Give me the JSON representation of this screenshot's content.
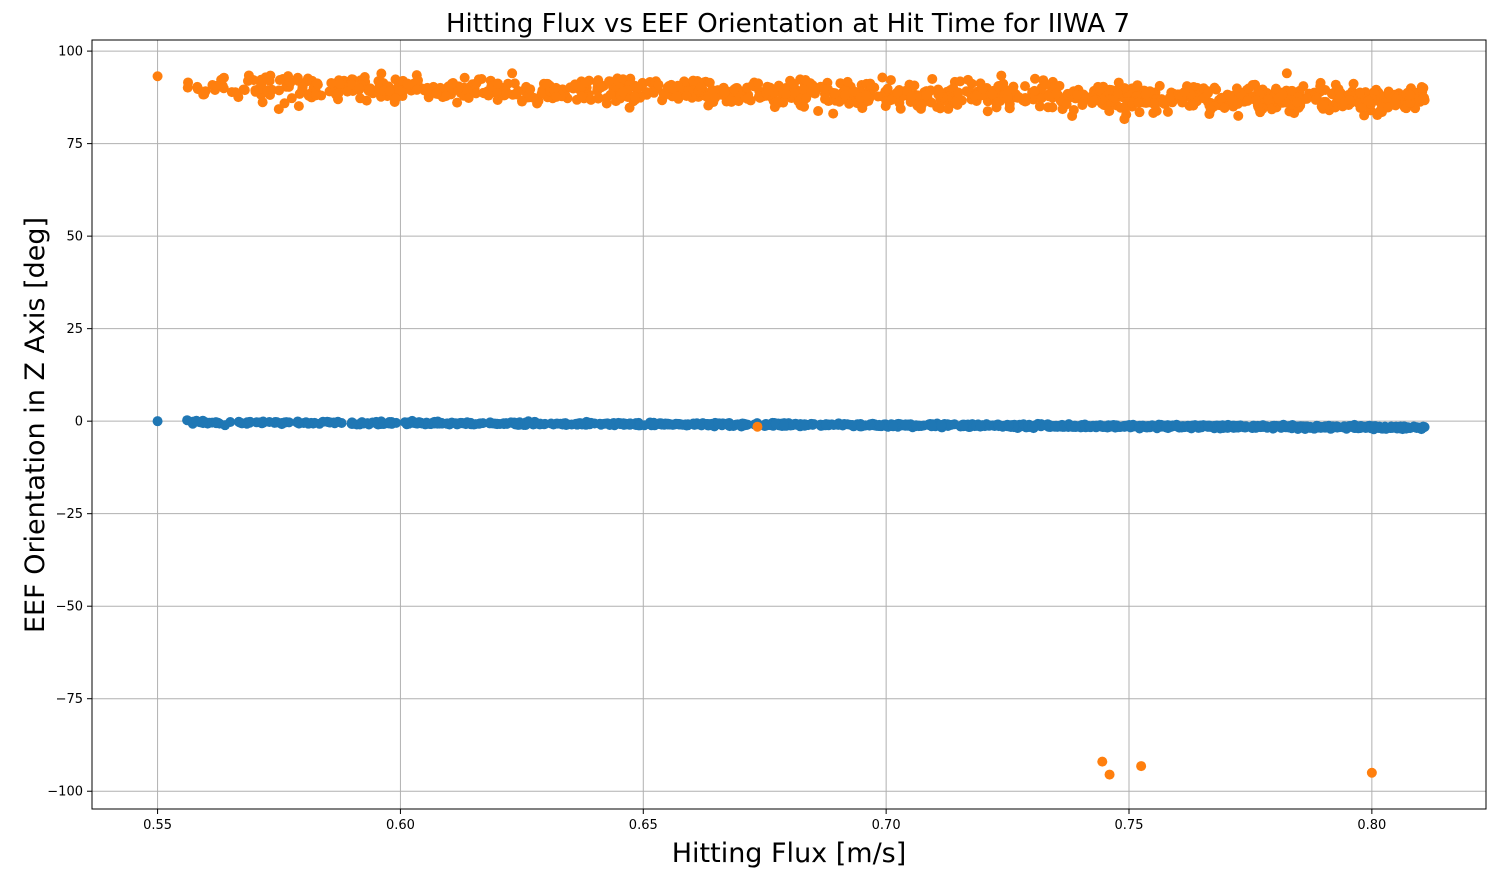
{
  "chart_data": {
    "type": "scatter",
    "title": "Hitting Flux vs EEF Orientation at Hit Time for IIWA 7",
    "xlabel": "Hitting Flux [m/s]",
    "ylabel": "EEF Orientation in Z Axis [deg]",
    "xlim": [
      0.5365,
      0.8235
    ],
    "ylim": [
      -104.8,
      103.0
    ],
    "xticks": [
      0.55,
      0.6,
      0.65,
      0.7,
      0.75,
      0.8
    ],
    "xtick_labels": [
      "0.55",
      "0.60",
      "0.65",
      "0.70",
      "0.75",
      "0.80"
    ],
    "yticks": [
      100,
      75,
      50,
      25,
      0,
      -25,
      -50,
      -75,
      -100
    ],
    "ytick_labels": [
      "100",
      "75",
      "50",
      "25",
      "0",
      "−25",
      "−50",
      "−75",
      "−100"
    ],
    "grid": true,
    "series": [
      {
        "color": "#1f77b4",
        "x_range": [
          0.555,
          0.811
        ],
        "y_trend": [
          -0.3,
          -1.7
        ],
        "y_spread": 0.6,
        "count": 1100,
        "extra_points": [
          {
            "x": 0.55,
            "y": 0.0
          },
          {
            "x": 0.558,
            "y": 0.1
          },
          {
            "x": 0.569,
            "y": -0.2
          }
        ]
      },
      {
        "color": "#ff7f0e",
        "x_range": [
          0.555,
          0.811
        ],
        "y_trend": [
          90.5,
          86.5
        ],
        "y_spread": 3.2,
        "count": 1100,
        "extra_points": [
          {
            "x": 0.55,
            "y": 93.2
          },
          {
            "x": 0.6735,
            "y": -1.5
          },
          {
            "x": 0.7445,
            "y": -92.0
          },
          {
            "x": 0.746,
            "y": -95.5
          },
          {
            "x": 0.7525,
            "y": -93.2
          },
          {
            "x": 0.8,
            "y": -95.0
          },
          {
            "x": 0.686,
            "y": 83.8
          },
          {
            "x": 0.7825,
            "y": 94.0
          },
          {
            "x": 0.623,
            "y": 94.0
          },
          {
            "x": 0.777,
            "y": 83.5
          }
        ]
      }
    ]
  }
}
